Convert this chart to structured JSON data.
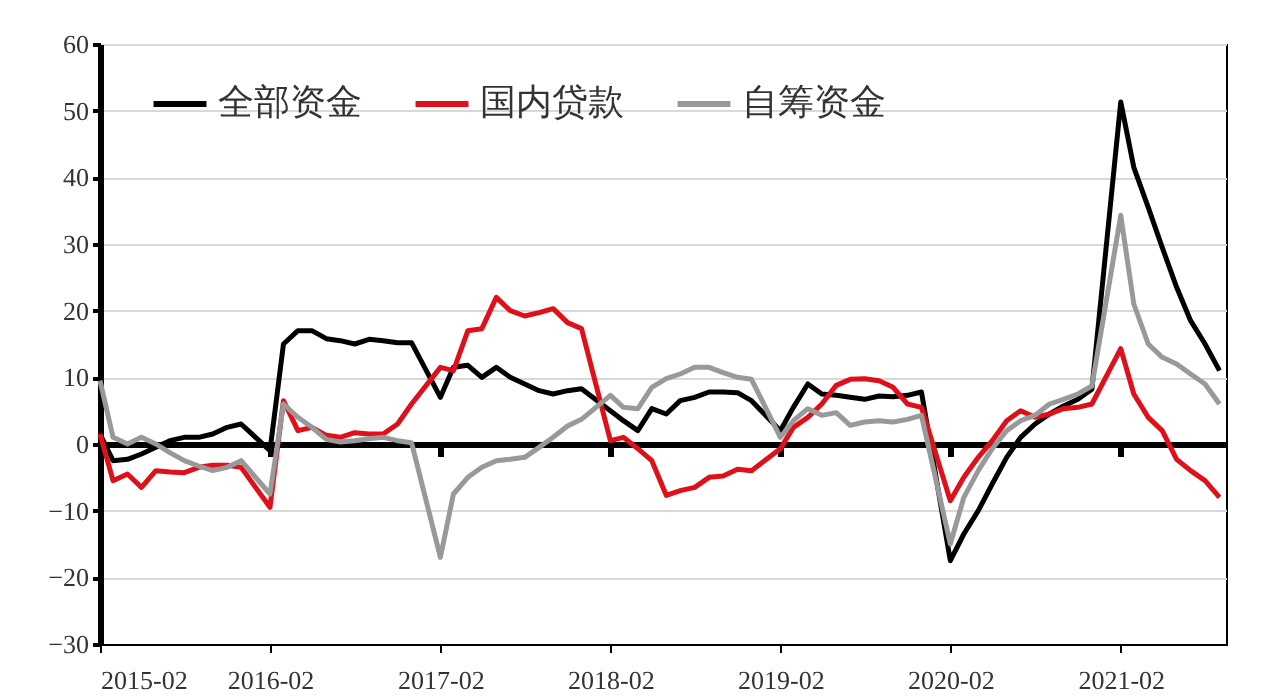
{
  "chart_data": {
    "type": "line",
    "x": [
      "2015-02",
      "2015-03",
      "2015-04",
      "2015-05",
      "2015-06",
      "2015-07",
      "2015-08",
      "2015-09",
      "2015-10",
      "2015-11",
      "2015-12",
      "2016-02",
      "2016-03",
      "2016-04",
      "2016-05",
      "2016-06",
      "2016-07",
      "2016-08",
      "2016-09",
      "2016-10",
      "2016-11",
      "2016-12",
      "2017-02",
      "2017-03",
      "2017-04",
      "2017-05",
      "2017-06",
      "2017-07",
      "2017-08",
      "2017-09",
      "2017-10",
      "2017-11",
      "2017-12",
      "2018-02",
      "2018-03",
      "2018-04",
      "2018-05",
      "2018-06",
      "2018-07",
      "2018-08",
      "2018-09",
      "2018-10",
      "2018-11",
      "2018-12",
      "2019-02",
      "2019-03",
      "2019-04",
      "2019-05",
      "2019-06",
      "2019-07",
      "2019-08",
      "2019-09",
      "2019-10",
      "2019-11",
      "2019-12",
      "2020-02",
      "2020-03",
      "2020-04",
      "2020-05",
      "2020-06",
      "2020-07",
      "2020-08",
      "2020-09",
      "2020-10",
      "2020-11",
      "2020-12",
      "2021-02",
      "2021-03",
      "2021-04",
      "2021-05",
      "2021-06",
      "2021-07",
      "2021-08",
      "2021-09"
    ],
    "series": [
      {
        "name": "全部资金",
        "color": "#000000",
        "values": [
          1.5,
          -2.5,
          -2.3,
          -1.5,
          -0.5,
          0.5,
          1,
          1,
          1.5,
          2.5,
          3,
          -1,
          15,
          17,
          17,
          15.8,
          15.5,
          15,
          15.7,
          15.5,
          15.2,
          15.2,
          7,
          11.5,
          11.8,
          10,
          11.5,
          10,
          9,
          8,
          7.5,
          8,
          8.3,
          5,
          3.5,
          2,
          5.3,
          4.5,
          6.5,
          7,
          7.8,
          7.8,
          7.7,
          6.5,
          2,
          5.5,
          9,
          7.5,
          7.3,
          7,
          6.7,
          7.2,
          7.1,
          7.3,
          7.8,
          -17.5,
          -13.5,
          -10,
          -6,
          -2,
          1,
          3,
          4.5,
          5.7,
          6.7,
          8.2,
          51.3,
          41.5,
          35.5,
          29.5,
          23.5,
          18.5,
          15,
          11
        ]
      },
      {
        "name": "国内贷款",
        "color": "#e0101a",
        "values": [
          1.5,
          -5.5,
          -4.5,
          -6.5,
          -4,
          -4.2,
          -4.3,
          -3.5,
          -3.2,
          -3.2,
          -3.5,
          -9.5,
          6.5,
          2,
          2.5,
          1.3,
          1,
          1.7,
          1.5,
          1.5,
          3,
          6,
          11.5,
          11,
          17,
          17.3,
          22,
          20,
          19.2,
          19.7,
          20.3,
          18.2,
          17.3,
          0.5,
          1,
          -0.7,
          -2.5,
          -7.7,
          -7,
          -6.5,
          -5,
          -4.8,
          -3.8,
          -4,
          -0.7,
          2.5,
          4,
          6,
          8.8,
          9.7,
          9.8,
          9.5,
          8.5,
          6,
          5.5,
          -8.5,
          -5,
          -2,
          0.5,
          3.5,
          5,
          4,
          4.5,
          5.3,
          5.5,
          6,
          14.3,
          7.5,
          4,
          2,
          -2.3,
          -4,
          -5.5,
          -8
        ]
      },
      {
        "name": "自筹资金",
        "color": "#999999",
        "values": [
          9.5,
          1,
          0,
          1,
          0,
          -1.3,
          -2.5,
          -3.3,
          -4,
          -3.5,
          -2.5,
          -7.5,
          6,
          4,
          2.5,
          0.7,
          0.3,
          0.5,
          0.8,
          1,
          0.5,
          0.2,
          -17,
          -7.5,
          -5,
          -3.5,
          -2.5,
          -2.3,
          -2,
          -0.5,
          1,
          2.7,
          3.7,
          7.3,
          5.5,
          5.3,
          8.5,
          9.8,
          10.5,
          11.5,
          11.5,
          10.7,
          10,
          9.7,
          1,
          3.5,
          5.3,
          4.3,
          4.7,
          2.8,
          3.3,
          3.5,
          3.3,
          3.7,
          4.3,
          -15,
          -8,
          -4,
          -0.7,
          2,
          3.5,
          4.3,
          6,
          6.7,
          7.5,
          8.7,
          34.3,
          21,
          15,
          13,
          12,
          10.5,
          9,
          6
        ]
      }
    ],
    "xlim": [
      "2015-02",
      "2021-09-15"
    ],
    "xticks": [
      "2015-02",
      "2016-02",
      "2017-02",
      "2018-02",
      "2019-02",
      "2020-02",
      "2021-02"
    ],
    "ylim": [
      -30,
      60
    ],
    "yticks": [
      -30,
      -20,
      -10,
      0,
      10,
      20,
      30,
      40,
      50,
      60
    ],
    "grid": "y",
    "legend": "top",
    "marker": "none",
    "line_style": "solid"
  }
}
